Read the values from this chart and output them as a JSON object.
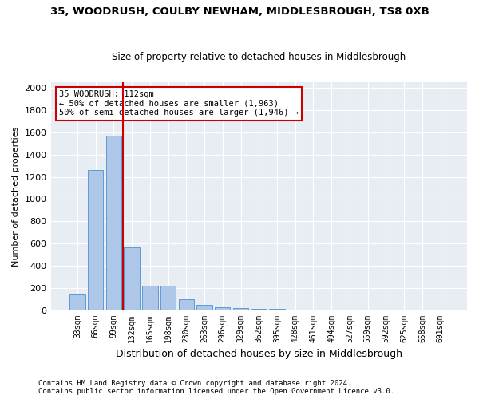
{
  "title1": "35, WOODRUSH, COULBY NEWHAM, MIDDLESBROUGH, TS8 0XB",
  "title2": "Size of property relative to detached houses in Middlesbrough",
  "xlabel": "Distribution of detached houses by size in Middlesbrough",
  "ylabel": "Number of detached properties",
  "footnote": "Contains HM Land Registry data © Crown copyright and database right 2024.\nContains public sector information licensed under the Open Government Licence v3.0.",
  "bar_color": "#aec6e8",
  "bar_edge_color": "#5b9bd5",
  "background_color": "#e8edf4",
  "grid_color": "#ffffff",
  "annotation_box_color": "#cc0000",
  "vline_color": "#cc0000",
  "categories": [
    "33sqm",
    "66sqm",
    "99sqm",
    "132sqm",
    "165sqm",
    "198sqm",
    "230sqm",
    "263sqm",
    "296sqm",
    "329sqm",
    "362sqm",
    "395sqm",
    "428sqm",
    "461sqm",
    "494sqm",
    "527sqm",
    "559sqm",
    "592sqm",
    "625sqm",
    "658sqm",
    "691sqm"
  ],
  "values": [
    140,
    1265,
    1570,
    565,
    220,
    220,
    95,
    50,
    28,
    18,
    10,
    8,
    5,
    3,
    2,
    1,
    1,
    0,
    0,
    0,
    0
  ],
  "property_name": "35 WOODRUSH: 112sqm",
  "annotation_line1": "← 50% of detached houses are smaller (1,963)",
  "annotation_line2": "50% of semi-detached houses are larger (1,946) →",
  "vline_x_index": 2.5,
  "ylim": [
    0,
    2050
  ],
  "yticks": [
    0,
    200,
    400,
    600,
    800,
    1000,
    1200,
    1400,
    1600,
    1800,
    2000
  ]
}
